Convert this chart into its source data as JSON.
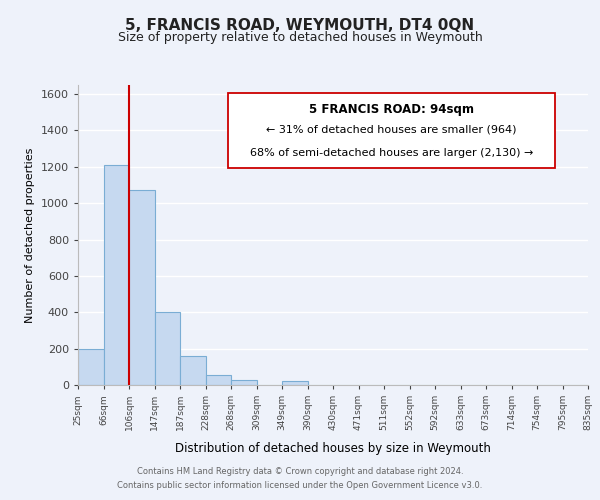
{
  "title": "5, FRANCIS ROAD, WEYMOUTH, DT4 0QN",
  "subtitle": "Size of property relative to detached houses in Weymouth",
  "xlabel": "Distribution of detached houses by size in Weymouth",
  "ylabel": "Number of detached properties",
  "bar_values": [
    200,
    1210,
    1070,
    400,
    160,
    55,
    25,
    0,
    20,
    0,
    0,
    0,
    0,
    0,
    0,
    0,
    0,
    0,
    0,
    0
  ],
  "bin_labels": [
    "25sqm",
    "66sqm",
    "106sqm",
    "147sqm",
    "187sqm",
    "228sqm",
    "268sqm",
    "309sqm",
    "349sqm",
    "390sqm",
    "430sqm",
    "471sqm",
    "511sqm",
    "552sqm",
    "592sqm",
    "633sqm",
    "673sqm",
    "714sqm",
    "754sqm",
    "795sqm",
    "835sqm"
  ],
  "bar_color": "#c6d9f0",
  "bar_edge_color": "#7aadd4",
  "vline_color": "#cc0000",
  "vline_position": 2,
  "ylim": [
    0,
    1650
  ],
  "yticks": [
    0,
    200,
    400,
    600,
    800,
    1000,
    1200,
    1400,
    1600
  ],
  "annotation_title": "5 FRANCIS ROAD: 94sqm",
  "annotation_line1": "← 31% of detached houses are smaller (964)",
  "annotation_line2": "68% of semi-detached houses are larger (2,130) →",
  "footer_line1": "Contains HM Land Registry data © Crown copyright and database right 2024.",
  "footer_line2": "Contains public sector information licensed under the Open Government Licence v3.0.",
  "bg_color": "#eef2fa",
  "grid_color": "white"
}
